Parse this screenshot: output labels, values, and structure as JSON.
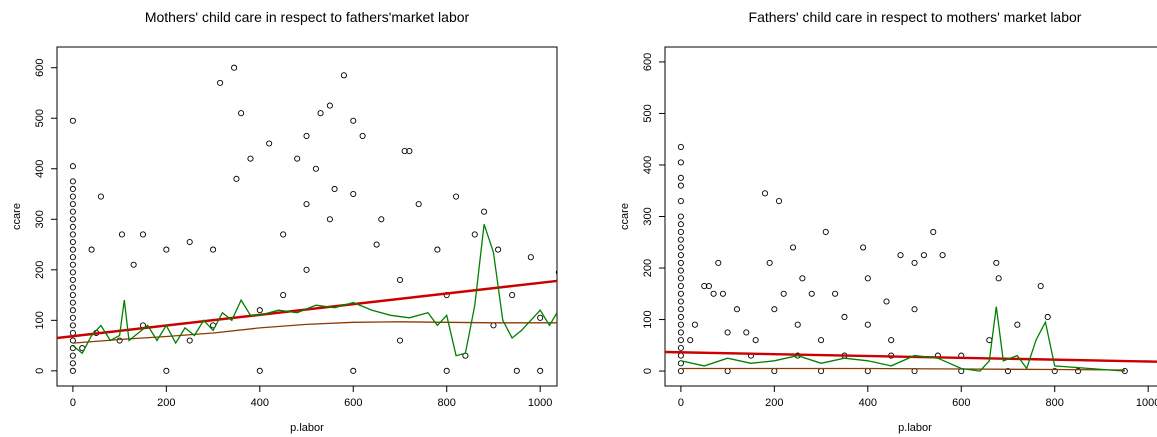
{
  "chart_data": [
    {
      "type": "scatter",
      "title": "Mothers' child care in respect to fathers'market labor",
      "x_label": "p.labor",
      "y_label": "ccare",
      "xlim": [
        -34,
        1036
      ],
      "ylim": [
        -30,
        641
      ],
      "xticks": [
        0,
        200,
        400,
        600,
        800,
        1000
      ],
      "yticks": [
        0,
        100,
        200,
        300,
        400,
        500,
        600
      ],
      "points": {
        "color": "#000000",
        "x": [
          0,
          0,
          0,
          0,
          0,
          0,
          0,
          0,
          0,
          0,
          0,
          0,
          0,
          0,
          0,
          0,
          0,
          0,
          0,
          0,
          0,
          0,
          0,
          0,
          0,
          0,
          0,
          0,
          60,
          40,
          105,
          150,
          130,
          200,
          250,
          300,
          315,
          345,
          360,
          380,
          420,
          500,
          530,
          550,
          580,
          600,
          620,
          710,
          720,
          880,
          910,
          980,
          1040,
          820,
          780,
          860,
          940,
          1000,
          200,
          400,
          600,
          800,
          950,
          1000,
          300,
          450,
          500,
          550,
          600,
          650,
          700,
          500,
          450,
          400,
          350,
          480,
          520,
          560,
          660,
          740,
          800,
          840,
          100,
          150,
          250,
          700,
          900,
          50,
          20
        ],
        "y": [
          0,
          15,
          30,
          45,
          60,
          75,
          90,
          105,
          120,
          135,
          150,
          165,
          180,
          195,
          210,
          225,
          240,
          255,
          270,
          285,
          300,
          315,
          330,
          345,
          360,
          375,
          405,
          495,
          345,
          240,
          270,
          270,
          210,
          240,
          255,
          240,
          570,
          600,
          510,
          420,
          450,
          465,
          510,
          525,
          585,
          495,
          465,
          435,
          435,
          315,
          240,
          225,
          195,
          345,
          240,
          270,
          150,
          105,
          0,
          0,
          0,
          0,
          0,
          0,
          90,
          150,
          200,
          300,
          350,
          250,
          180,
          330,
          270,
          120,
          380,
          420,
          400,
          360,
          300,
          330,
          150,
          30,
          60,
          90,
          60,
          60,
          90,
          75,
          45
        ]
      },
      "lines": [
        {
          "color": "#cc0000",
          "x": [
            -34,
            1036
          ],
          "y": [
            65,
            178
          ]
        },
        {
          "color": "#8b3a00",
          "x": [
            0,
            100,
            200,
            300,
            400,
            500,
            600,
            700,
            800,
            900,
            1036
          ],
          "y": [
            55,
            62,
            68,
            75,
            85,
            92,
            96,
            97,
            96,
            95,
            95
          ]
        },
        {
          "color": "#008000",
          "x": [
            0,
            20,
            40,
            60,
            80,
            100,
            110,
            120,
            140,
            160,
            180,
            200,
            220,
            240,
            260,
            280,
            300,
            320,
            340,
            360,
            380,
            400,
            440,
            480,
            520,
            560,
            600,
            640,
            680,
            720,
            760,
            780,
            800,
            820,
            840,
            860,
            880,
            900,
            920,
            940,
            960,
            1000,
            1020,
            1036
          ],
          "y": [
            50,
            35,
            70,
            90,
            60,
            70,
            140,
            60,
            75,
            90,
            60,
            90,
            55,
            85,
            70,
            100,
            80,
            115,
            100,
            140,
            110,
            110,
            120,
            115,
            130,
            125,
            135,
            120,
            110,
            105,
            115,
            90,
            110,
            30,
            35,
            130,
            290,
            235,
            100,
            65,
            80,
            120,
            90,
            115
          ]
        }
      ]
    },
    {
      "type": "scatter",
      "title": "Fathers' child care in respect to mothers' market labor",
      "x_label": "p.labor",
      "y_label": "ccare",
      "xlim": [
        -34,
        1036
      ],
      "ylim": [
        -29,
        629
      ],
      "xticks": [
        0,
        200,
        400,
        600,
        800,
        1000
      ],
      "yticks": [
        0,
        100,
        200,
        300,
        400,
        500,
        600
      ],
      "points": {
        "color": "#000000",
        "x": [
          0,
          0,
          0,
          0,
          0,
          0,
          0,
          0,
          0,
          0,
          0,
          0,
          0,
          0,
          0,
          0,
          0,
          0,
          0,
          0,
          0,
          0,
          0,
          0,
          0,
          0,
          20,
          30,
          50,
          60,
          70,
          80,
          90,
          100,
          120,
          140,
          160,
          180,
          190,
          200,
          210,
          220,
          240,
          260,
          280,
          310,
          330,
          350,
          390,
          400,
          440,
          470,
          500,
          520,
          540,
          560,
          600,
          660,
          675,
          680,
          720,
          770,
          785,
          950,
          100,
          200,
          300,
          400,
          500,
          600,
          700,
          800,
          850,
          150,
          250,
          350,
          450,
          550,
          300,
          400,
          500,
          250,
          450
        ],
        "y": [
          0,
          15,
          30,
          45,
          60,
          75,
          90,
          105,
          120,
          135,
          150,
          165,
          180,
          195,
          210,
          225,
          240,
          255,
          270,
          285,
          300,
          330,
          360,
          375,
          405,
          435,
          60,
          90,
          165,
          165,
          150,
          210,
          150,
          75,
          120,
          75,
          60,
          345,
          210,
          120,
          330,
          150,
          240,
          180,
          150,
          270,
          150,
          105,
          240,
          180,
          135,
          225,
          210,
          225,
          270,
          225,
          30,
          60,
          210,
          180,
          90,
          165,
          105,
          0,
          0,
          0,
          0,
          0,
          0,
          0,
          0,
          0,
          0,
          30,
          30,
          30,
          30,
          30,
          60,
          90,
          120,
          90,
          60
        ]
      },
      "lines": [
        {
          "color": "#cc0000",
          "x": [
            -34,
            1036
          ],
          "y": [
            37,
            18
          ]
        },
        {
          "color": "#8b3a00",
          "x": [
            0,
            200,
            400,
            600,
            800,
            950
          ],
          "y": [
            5,
            5,
            5,
            4,
            3,
            2
          ]
        },
        {
          "color": "#008000",
          "x": [
            0,
            50,
            100,
            150,
            200,
            250,
            300,
            350,
            400,
            450,
            500,
            550,
            600,
            640,
            660,
            675,
            690,
            720,
            740,
            760,
            780,
            800,
            950
          ],
          "y": [
            20,
            10,
            25,
            15,
            20,
            30,
            15,
            25,
            20,
            10,
            30,
            25,
            5,
            0,
            20,
            125,
            20,
            30,
            5,
            60,
            95,
            10,
            0
          ]
        }
      ]
    }
  ]
}
